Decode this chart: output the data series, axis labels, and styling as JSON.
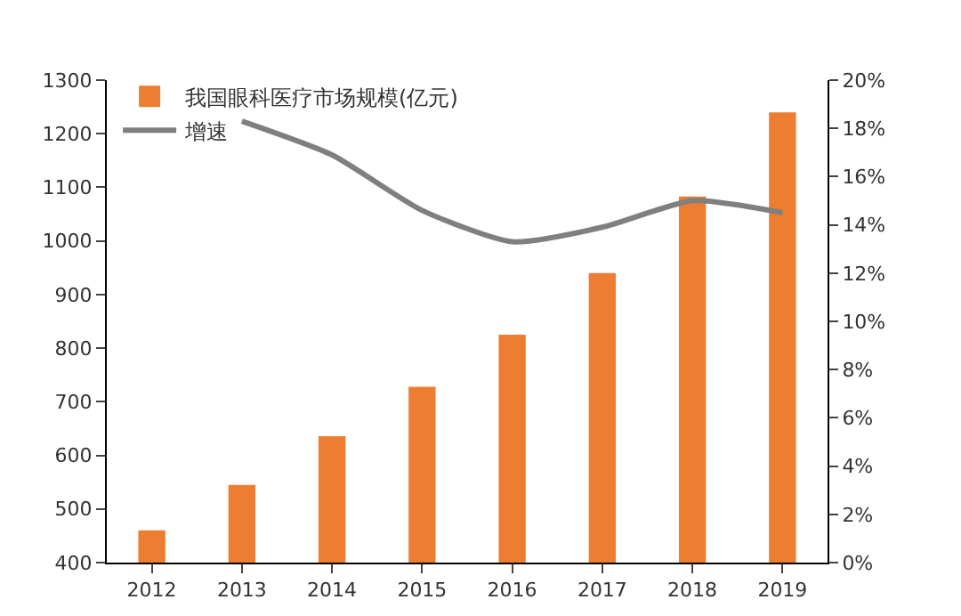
{
  "chart_data": {
    "type": "bar",
    "categories": [
      "2012",
      "2013",
      "2014",
      "2015",
      "2016",
      "2017",
      "2018",
      "2019"
    ],
    "series": [
      {
        "name": "我国眼科医疗市场规模(亿元)",
        "color": "#ed7d31",
        "values": [
          460,
          545,
          636,
          728,
          825,
          940,
          1083,
          1240
        ]
      },
      {
        "name": "增速",
        "type": "line",
        "axis": "y2",
        "color": "#7f7f7f",
        "values": [
          null,
          18.3,
          16.9,
          14.6,
          13.3,
          13.9,
          15.0,
          14.5
        ]
      }
    ],
    "ylim": [
      400,
      1300
    ],
    "yticks": [
      400,
      500,
      600,
      700,
      800,
      900,
      1000,
      1100,
      1200,
      1300
    ],
    "y2lim": [
      0,
      20
    ],
    "y2ticks": [
      {
        "value": 0,
        "label": "0%"
      },
      {
        "value": 2,
        "label": "2%"
      },
      {
        "value": 4,
        "label": "4%"
      },
      {
        "value": 6,
        "label": "6%"
      },
      {
        "value": 8,
        "label": "8%"
      },
      {
        "value": 10,
        "label": "10%"
      },
      {
        "value": 12,
        "label": "12%"
      },
      {
        "value": 14,
        "label": "14%"
      },
      {
        "value": 16,
        "label": "16%"
      },
      {
        "value": 18,
        "label": "18%"
      },
      {
        "value": 20,
        "label": "20%"
      }
    ],
    "grid": false,
    "legend": "top left",
    "marker": "none",
    "line_style": "solid"
  }
}
